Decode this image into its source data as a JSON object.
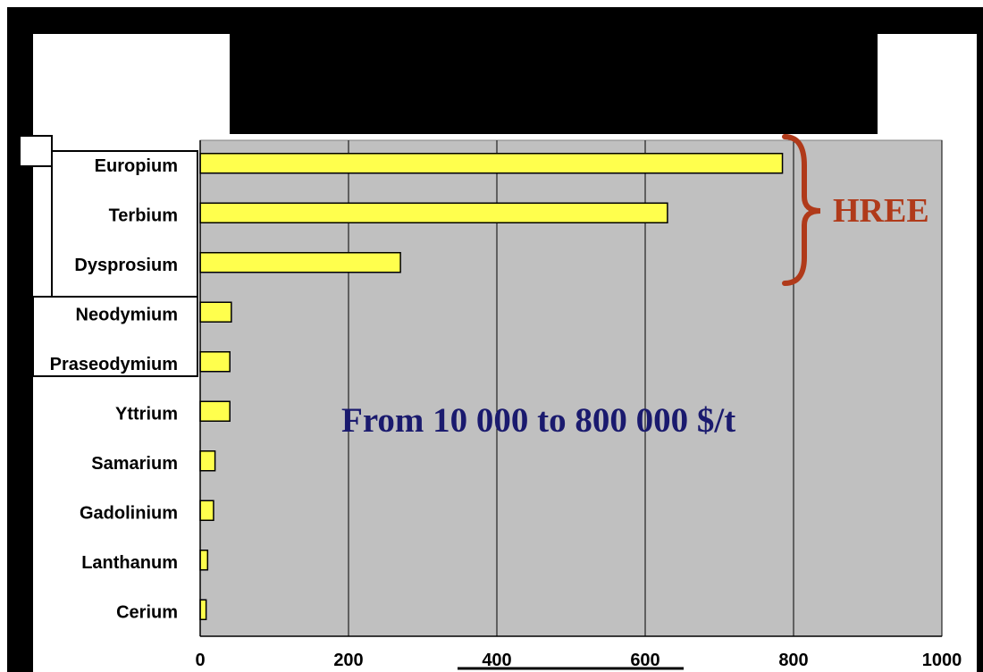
{
  "chart_data": {
    "type": "bar",
    "orientation": "horizontal",
    "categories": [
      "Europium",
      "Terbium",
      "Dysprosium",
      "Neodymium",
      "Praseodymium",
      "Yttrium",
      "Samarium",
      "Gadolinium",
      "Lanthanum",
      "Cerium"
    ],
    "values": [
      785,
      630,
      270,
      42,
      40,
      40,
      20,
      18,
      10,
      8
    ],
    "xlim": [
      0,
      1000
    ],
    "xticks": [
      "0",
      "200",
      "400",
      "600",
      "800",
      "1000"
    ],
    "grid": true,
    "title": "",
    "xlabel": "",
    "ylabel": "",
    "annotations": {
      "range_text": "From 10 000 to 800 000 $/t",
      "bracket_label": "HREE"
    },
    "colors": {
      "bar_fill": "#ffff4d",
      "plot_background": "#c0c0c0",
      "range_text": "#1a1a6e",
      "bracket": "#b03a1a"
    }
  }
}
